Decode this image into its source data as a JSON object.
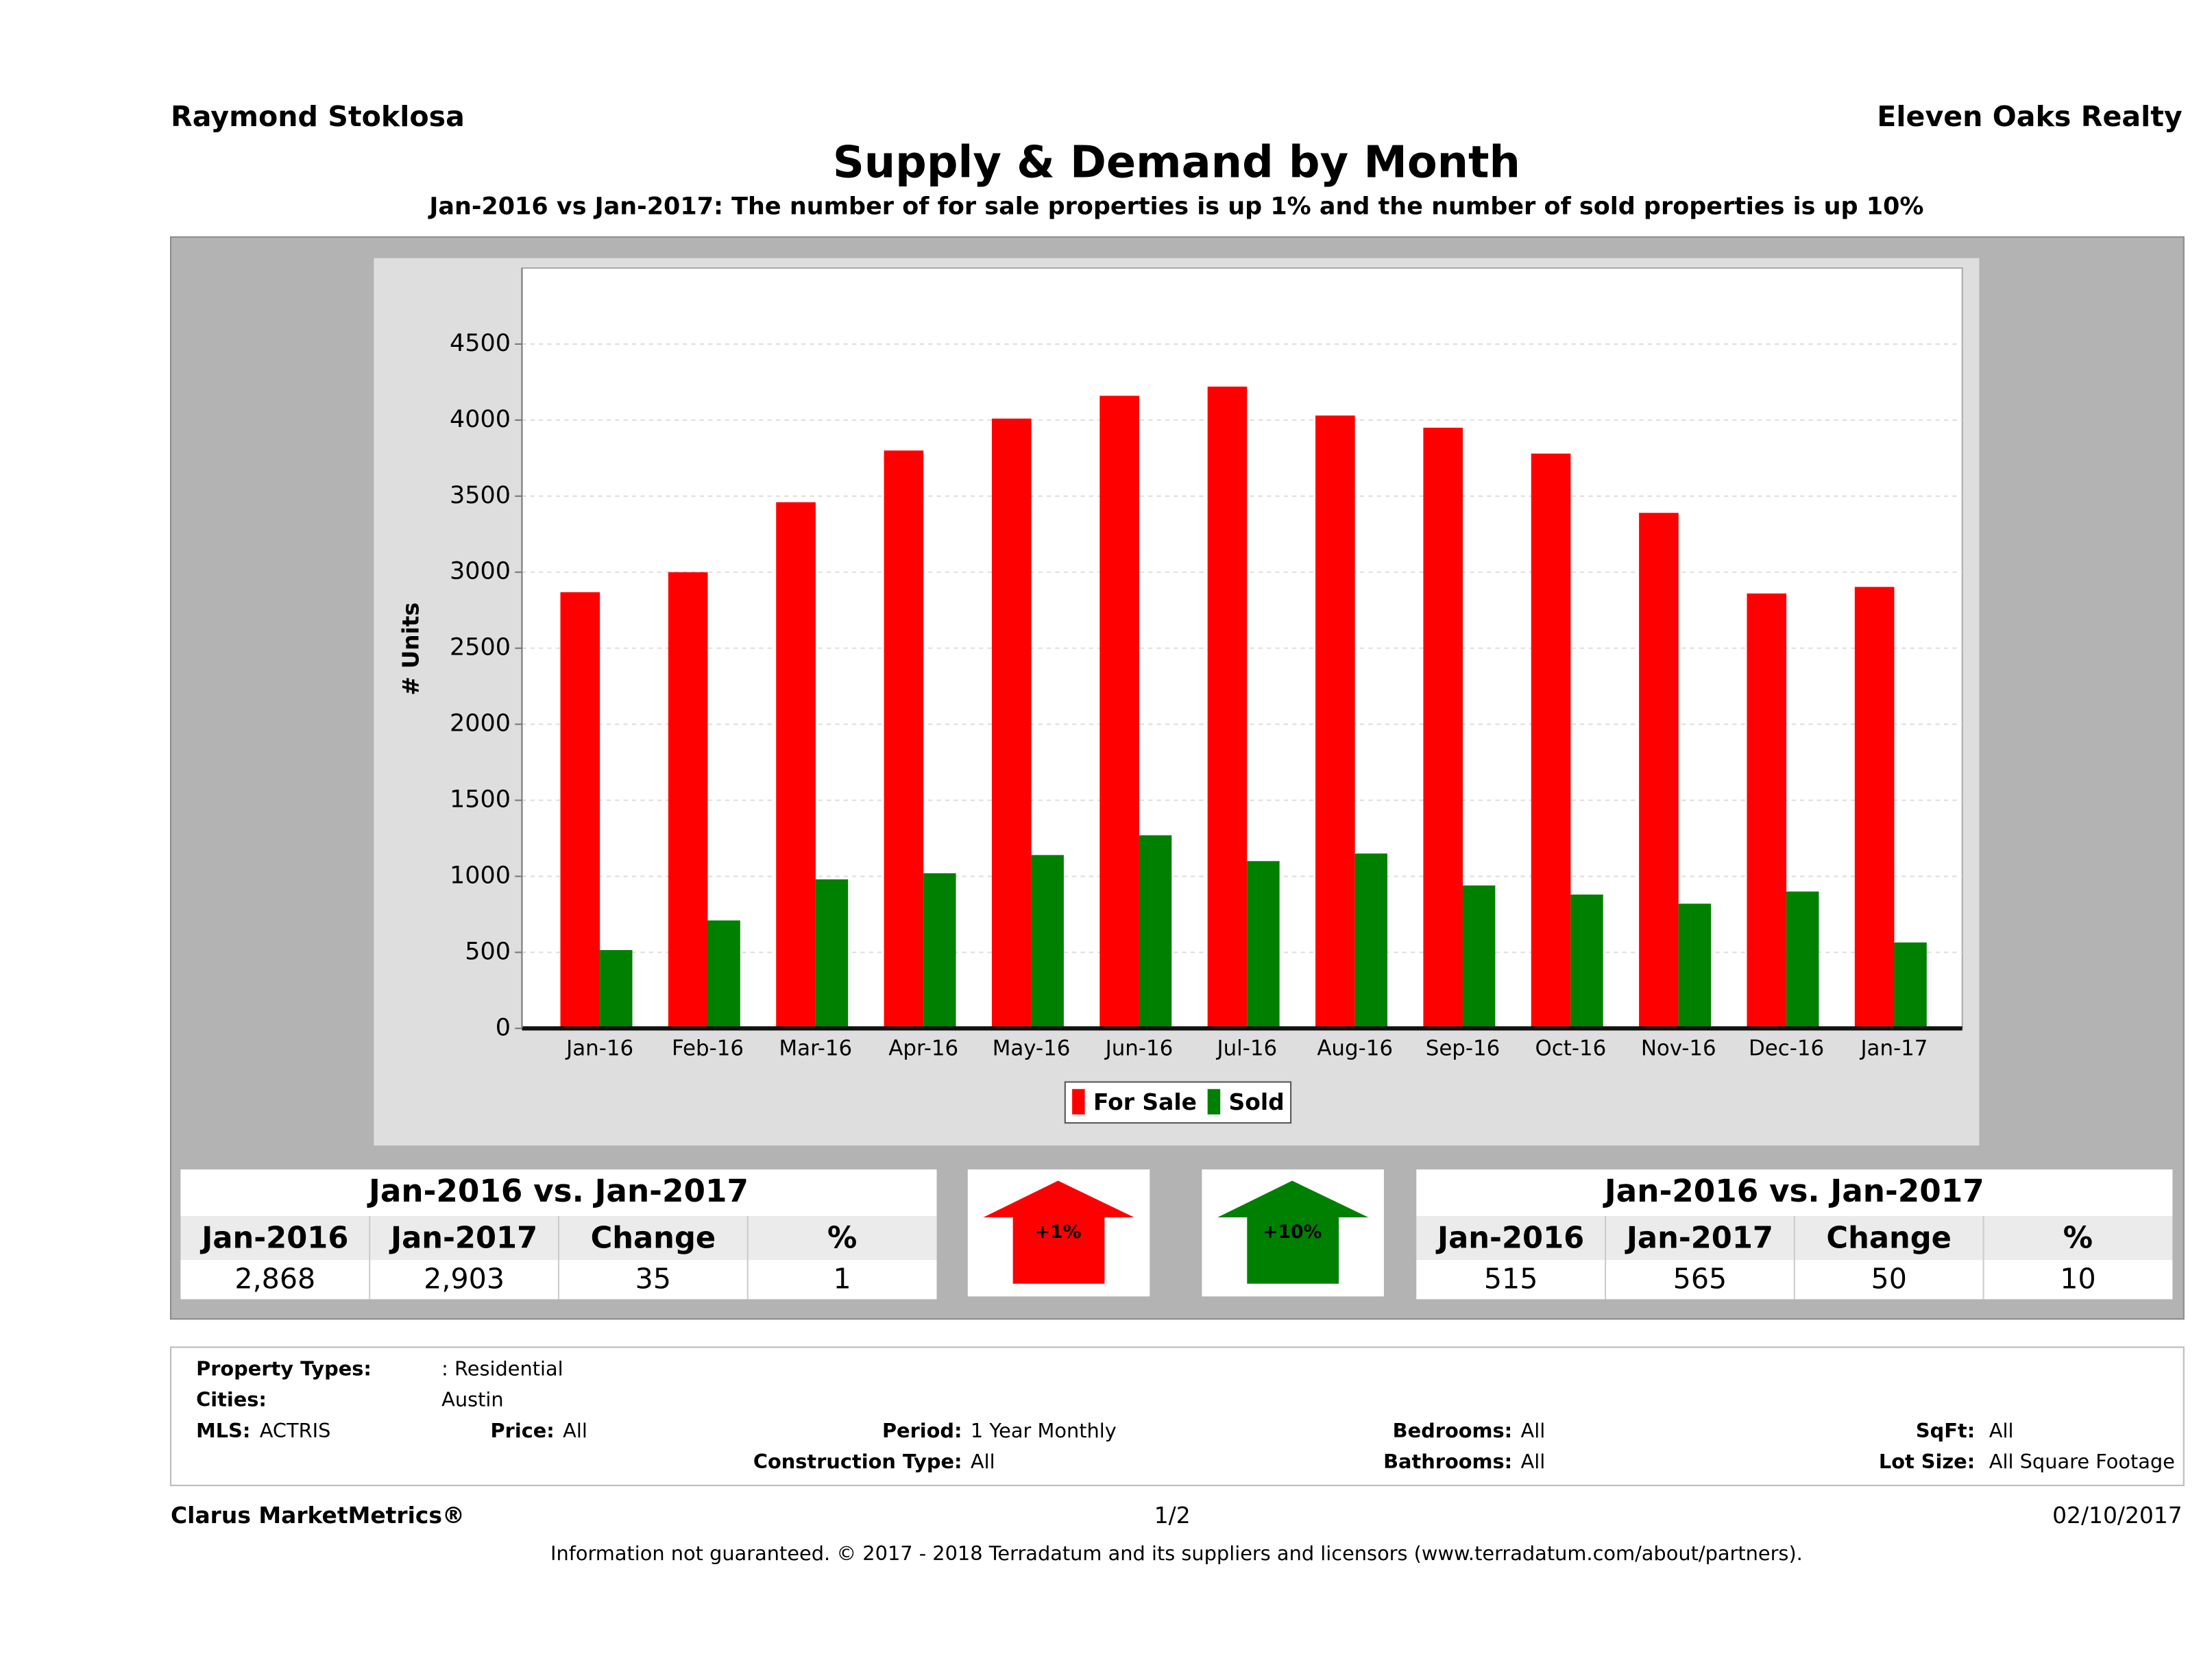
{
  "header": {
    "agent": "Raymond Stoklosa",
    "company": "Eleven Oaks Realty"
  },
  "chart_data": {
    "type": "bar",
    "title": "Supply & Demand by Month",
    "subtitle": "Jan-2016 vs Jan-2017: The number of for sale properties is up 1% and the number of sold properties is up 10%",
    "y_label": "# Units",
    "categories": [
      "Jan-16",
      "Feb-16",
      "Mar-16",
      "Apr-16",
      "May-16",
      "Jun-16",
      "Jul-16",
      "Aug-16",
      "Sep-16",
      "Oct-16",
      "Nov-16",
      "Dec-16",
      "Jan-17"
    ],
    "series": [
      {
        "name": "For Sale",
        "color": "#ff0000",
        "values": [
          2868,
          3000,
          3460,
          3800,
          4010,
          4160,
          4220,
          4030,
          3950,
          3780,
          3390,
          2860,
          2903
        ]
      },
      {
        "name": "Sold",
        "color": "#008000",
        "values": [
          515,
          710,
          980,
          1020,
          1140,
          1270,
          1100,
          1150,
          940,
          880,
          820,
          900,
          565
        ]
      }
    ],
    "ylim": [
      0,
      5000
    ],
    "yticks": [
      0,
      500,
      1000,
      1500,
      2000,
      2500,
      3000,
      3500,
      4000,
      4500
    ],
    "grid": true,
    "legend": "bottom"
  },
  "summaries": [
    {
      "title": "Jan-2016 vs. Jan-2017",
      "columns": [
        "Jan-2016",
        "Jan-2017",
        "Change",
        "%"
      ],
      "row": [
        "2,868",
        "2,903",
        "35",
        "1"
      ],
      "arrow": "+1%",
      "color": "#ff0000"
    },
    {
      "title": "Jan-2016 vs. Jan-2017",
      "columns": [
        "Jan-2016",
        "Jan-2017",
        "Change",
        "%"
      ],
      "row": [
        "515",
        "565",
        "50",
        "10"
      ],
      "arrow": "+10%",
      "color": "#008000"
    }
  ],
  "filters": [
    {
      "label": "Property Types:",
      "value": ": Residential"
    },
    {
      "label": "Cities:",
      "value": "Austin"
    },
    {
      "label": "MLS:",
      "value": "ACTRIS"
    },
    {
      "label": "Price:",
      "value": "All"
    },
    {
      "label": "Period:",
      "value": "1 Year Monthly"
    },
    {
      "label": "Bedrooms:",
      "value": "All"
    },
    {
      "label": "SqFt:",
      "value": "All"
    },
    {
      "label": "Construction Type:",
      "value": "All"
    },
    {
      "label": "Bathrooms:",
      "value": "All"
    },
    {
      "label": "Lot Size:",
      "value": "All Square Footage"
    }
  ],
  "footer": {
    "brand": "Clarus MarketMetrics®",
    "page": "1/2",
    "date": "02/10/2017",
    "disclaimer": "Information not guaranteed. © 2017 - 2018 Terradatum and its suppliers and licensors (www.terradatum.com/about/partners)."
  }
}
